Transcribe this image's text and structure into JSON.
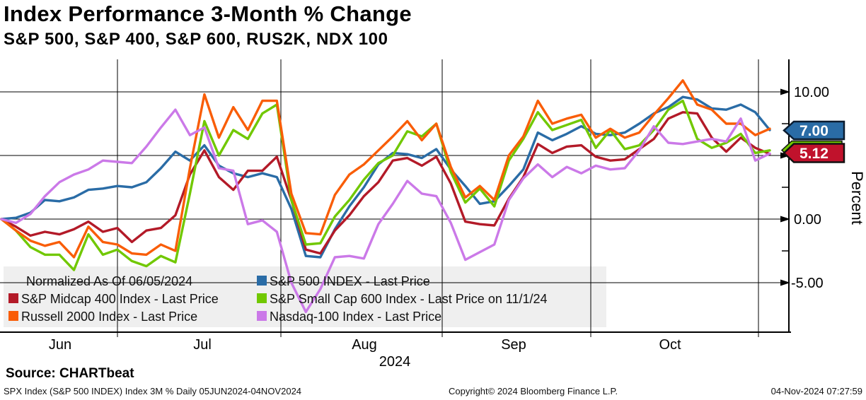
{
  "header": {
    "title": "Index Performance 3-Month % Change",
    "subtitle": "S&P 500, S&P 400, S&P 600, RUS2K, NDX 100"
  },
  "chart_data": {
    "type": "line",
    "title": "Index Performance 3-Month % Change",
    "period": "05JUN2024-04NOV2024",
    "frequency": "Daily",
    "normalized_note": "Normalized As Of 06/05/2024",
    "x_axis": {
      "months": [
        "Jun",
        "Jul",
        "Aug",
        "Sep",
        "Oct"
      ],
      "year": "2024"
    },
    "y_axis": {
      "title": "Percent",
      "labels": [
        "10.00",
        "0.00",
        "-5.00"
      ],
      "major_ticks": [
        10,
        5,
        0,
        -5
      ],
      "minor_ticks": [
        7.5,
        2.5,
        -2.5
      ],
      "range_approx": [
        -8.5,
        12.5
      ],
      "grid": true
    },
    "legend": {
      "note": "Normalized As Of 06/05/2024",
      "items": [
        {
          "label": "S&P 500 INDEX - Last Price",
          "color": "#2a6ca6"
        },
        {
          "label": "S&P Midcap 400 Index - Last Price",
          "color": "#b31a28"
        },
        {
          "label": "S&P Small Cap 600 Index - Last Price on 11/1/24",
          "color": "#71c800"
        },
        {
          "label": "Russell 2000 Index - Last Price",
          "color": "#f95d07"
        },
        {
          "label": "Nasdaq-100 Index - Last Price",
          "color": "#cb79e8"
        }
      ]
    },
    "badges": [
      {
        "value": "7.00",
        "color": "#2a6ca6",
        "series": "S&P 500 INDEX"
      },
      {
        "value": "5.12",
        "color": "#c0122c",
        "series": "S&P Midcap 400 Index"
      }
    ],
    "smallcap_badge_color": "#71c800",
    "series": [
      {
        "id": "sp500",
        "name": "S&P 500 INDEX - Last Price",
        "color": "#2a6ca6",
        "last_value": 7.0,
        "values": [
          0.0,
          0.1,
          0.5,
          1.5,
          1.4,
          1.7,
          2.3,
          2.4,
          2.6,
          2.5,
          2.9,
          4.0,
          5.3,
          4.6,
          5.8,
          4.2,
          3.6,
          3.3,
          3.6,
          3.3,
          0.8,
          -2.9,
          -3.0,
          -0.8,
          1.0,
          2.5,
          4.3,
          5.2,
          5.1,
          4.8,
          5.5,
          3.9,
          2.6,
          1.2,
          1.4,
          2.6,
          3.9,
          6.8,
          6.2,
          6.7,
          7.3,
          6.7,
          6.6,
          6.8,
          7.5,
          8.3,
          8.8,
          9.6,
          9.4,
          8.7,
          8.6,
          9.0,
          8.4,
          7.0
        ]
      },
      {
        "id": "midcap400",
        "name": "S&P Midcap 400 Index - Last Price",
        "color": "#b31a28",
        "last_value": 5.12,
        "values": [
          0.0,
          -0.6,
          -1.3,
          -1.0,
          -1.2,
          -0.8,
          -0.2,
          -1.0,
          -0.7,
          -1.8,
          -0.9,
          -0.7,
          0.3,
          3.5,
          5.4,
          3.3,
          2.3,
          3.8,
          3.8,
          4.9,
          1.5,
          -2.4,
          -2.7,
          -0.9,
          0.3,
          1.8,
          2.9,
          4.6,
          4.8,
          4.2,
          4.9,
          2.8,
          -0.2,
          -0.4,
          -0.5,
          1.6,
          3.3,
          5.9,
          5.2,
          5.7,
          5.8,
          4.9,
          4.6,
          4.7,
          5.5,
          6.3,
          7.9,
          8.4,
          8.3,
          6.4,
          5.3,
          6.4,
          5.6,
          5.12
        ]
      },
      {
        "id": "smallcap600",
        "name": "S&P Small Cap 600 Index - Last Price on 11/1/24",
        "color": "#71c800",
        "last_value": 5.4,
        "values": [
          0.0,
          -0.9,
          -2.2,
          -2.8,
          -2.8,
          -4.0,
          -1.2,
          -2.8,
          -2.4,
          -3.3,
          -3.7,
          -2.9,
          -3.4,
          2.0,
          7.7,
          5.0,
          7.0,
          6.3,
          8.3,
          9.0,
          1.5,
          -2.0,
          -1.9,
          0.2,
          1.5,
          3.1,
          4.4,
          5.0,
          6.9,
          6.5,
          7.5,
          3.7,
          1.3,
          2.4,
          1.0,
          4.6,
          6.3,
          8.4,
          7.0,
          7.4,
          7.8,
          5.6,
          7.0,
          5.5,
          5.8,
          7.0,
          8.6,
          9.3,
          6.3,
          5.6,
          6.0,
          6.7,
          5.2,
          5.4
        ]
      },
      {
        "id": "russell2000",
        "name": "Russell 2000 Index - Last Price",
        "color": "#f95d07",
        "last_value": 7.1,
        "values": [
          0.0,
          -0.9,
          -1.7,
          -2.1,
          -1.8,
          -3.0,
          -0.6,
          -1.8,
          -2.0,
          -2.7,
          -2.8,
          -2.0,
          -2.5,
          4.0,
          9.8,
          6.4,
          8.8,
          7.0,
          9.3,
          9.3,
          2.0,
          -1.1,
          -1.2,
          1.9,
          3.5,
          4.3,
          5.4,
          6.5,
          7.7,
          6.2,
          7.5,
          4.1,
          1.7,
          2.6,
          1.5,
          5.0,
          6.5,
          9.3,
          7.5,
          7.9,
          8.2,
          6.4,
          7.1,
          6.4,
          6.8,
          8.2,
          9.5,
          10.9,
          9.0,
          8.6,
          7.5,
          7.5,
          6.6,
          7.1
        ]
      },
      {
        "id": "nasdaq100",
        "name": "Nasdaq-100 Index - Last Price",
        "color": "#cb79e8",
        "last_value": 5.15,
        "values": [
          0.0,
          -0.3,
          0.4,
          1.8,
          2.9,
          3.5,
          3.9,
          4.6,
          4.5,
          4.4,
          5.7,
          7.2,
          8.6,
          6.6,
          7.2,
          4.0,
          3.8,
          -0.4,
          -0.1,
          -1.0,
          -5.0,
          -7.3,
          -5.5,
          -3.0,
          -2.9,
          -3.1,
          -0.4,
          1.2,
          3.0,
          2.0,
          1.8,
          -0.3,
          -3.2,
          -2.6,
          -2.0,
          1.5,
          3.2,
          4.3,
          3.3,
          4.1,
          3.6,
          4.2,
          3.9,
          4.0,
          5.4,
          7.3,
          6.0,
          5.9,
          6.1,
          6.3,
          6.1,
          7.9,
          4.6,
          5.15
        ]
      }
    ]
  },
  "footer": {
    "source": "Source: CHARTbeat",
    "left": "SPX Index (S&P 500 INDEX) Index 3M %  Daily 05JUN2024-04NOV2024",
    "center": "Copyright© 2024 Bloomberg Finance L.P.",
    "right": "04-Nov-2024 07:27:59"
  }
}
